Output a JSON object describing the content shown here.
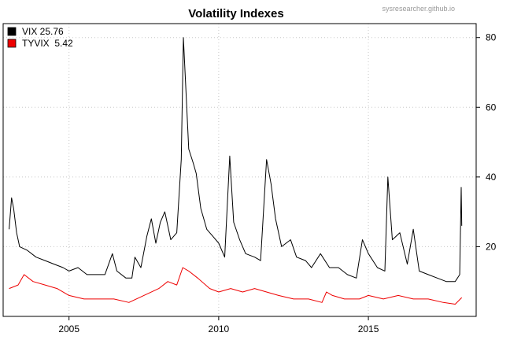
{
  "watermark": "sysresearcher.github.io",
  "chart_data": {
    "type": "line",
    "title": "Volatility Indexes",
    "xlabel": "",
    "ylabel": "",
    "x_ticks": [
      "2005",
      "2010",
      "2015"
    ],
    "y_ticks": [
      "20",
      "40",
      "60",
      "80"
    ],
    "xlim": [
      2002.8,
      2018.6
    ],
    "ylim": [
      0,
      84
    ],
    "y_axis_side": "right",
    "grid": true,
    "legend_position": "top-left",
    "legend": [
      {
        "label": "VIX 25.76",
        "color": "#000000"
      },
      {
        "label": "TYVIX  5.42",
        "color": "#ee0000"
      }
    ],
    "series": [
      {
        "name": "VIX",
        "color": "#000000",
        "points": [
          [
            2003.0,
            25
          ],
          [
            2003.08,
            34
          ],
          [
            2003.15,
            31
          ],
          [
            2003.25,
            24
          ],
          [
            2003.35,
            20
          ],
          [
            2003.6,
            19
          ],
          [
            2003.9,
            17
          ],
          [
            2004.2,
            16
          ],
          [
            2004.5,
            15
          ],
          [
            2004.8,
            14
          ],
          [
            2005.0,
            13
          ],
          [
            2005.3,
            14
          ],
          [
            2005.6,
            12
          ],
          [
            2005.9,
            12
          ],
          [
            2006.2,
            12
          ],
          [
            2006.45,
            18
          ],
          [
            2006.6,
            13
          ],
          [
            2006.9,
            11
          ],
          [
            2007.1,
            11
          ],
          [
            2007.2,
            17
          ],
          [
            2007.4,
            14
          ],
          [
            2007.6,
            23
          ],
          [
            2007.75,
            28
          ],
          [
            2007.9,
            21
          ],
          [
            2008.05,
            27
          ],
          [
            2008.2,
            30
          ],
          [
            2008.4,
            22
          ],
          [
            2008.6,
            24
          ],
          [
            2008.75,
            45
          ],
          [
            2008.82,
            80
          ],
          [
            2008.9,
            66
          ],
          [
            2009.0,
            48
          ],
          [
            2009.15,
            44
          ],
          [
            2009.25,
            41
          ],
          [
            2009.4,
            31
          ],
          [
            2009.6,
            25
          ],
          [
            2009.8,
            23
          ],
          [
            2010.0,
            21
          ],
          [
            2010.2,
            17
          ],
          [
            2010.37,
            46
          ],
          [
            2010.5,
            27
          ],
          [
            2010.7,
            22
          ],
          [
            2010.9,
            18
          ],
          [
            2011.2,
            17
          ],
          [
            2011.4,
            16
          ],
          [
            2011.6,
            45
          ],
          [
            2011.75,
            38
          ],
          [
            2011.9,
            28
          ],
          [
            2012.1,
            20
          ],
          [
            2012.4,
            22
          ],
          [
            2012.6,
            17
          ],
          [
            2012.9,
            16
          ],
          [
            2013.1,
            14
          ],
          [
            2013.4,
            18
          ],
          [
            2013.7,
            14
          ],
          [
            2014.0,
            14
          ],
          [
            2014.3,
            12
          ],
          [
            2014.6,
            11
          ],
          [
            2014.8,
            22
          ],
          [
            2015.0,
            18
          ],
          [
            2015.3,
            14
          ],
          [
            2015.55,
            13
          ],
          [
            2015.65,
            40
          ],
          [
            2015.8,
            22
          ],
          [
            2016.05,
            24
          ],
          [
            2016.3,
            15
          ],
          [
            2016.5,
            25
          ],
          [
            2016.7,
            13
          ],
          [
            2017.0,
            12
          ],
          [
            2017.3,
            11
          ],
          [
            2017.6,
            10
          ],
          [
            2017.9,
            10
          ],
          [
            2018.05,
            12
          ],
          [
            2018.1,
            37
          ],
          [
            2018.12,
            26
          ]
        ]
      },
      {
        "name": "TYVIX",
        "color": "#ee0000",
        "points": [
          [
            2003.0,
            8
          ],
          [
            2003.3,
            9
          ],
          [
            2003.5,
            12
          ],
          [
            2003.8,
            10
          ],
          [
            2004.2,
            9
          ],
          [
            2004.6,
            8
          ],
          [
            2005.0,
            6
          ],
          [
            2005.5,
            5
          ],
          [
            2006.0,
            5
          ],
          [
            2006.5,
            5
          ],
          [
            2007.0,
            4
          ],
          [
            2007.5,
            6
          ],
          [
            2008.0,
            8
          ],
          [
            2008.3,
            10
          ],
          [
            2008.6,
            9
          ],
          [
            2008.8,
            14
          ],
          [
            2009.0,
            13
          ],
          [
            2009.3,
            11
          ],
          [
            2009.7,
            8
          ],
          [
            2010.0,
            7
          ],
          [
            2010.4,
            8
          ],
          [
            2010.8,
            7
          ],
          [
            2011.2,
            8
          ],
          [
            2011.6,
            7
          ],
          [
            2012.0,
            6
          ],
          [
            2012.5,
            5
          ],
          [
            2013.0,
            5
          ],
          [
            2013.45,
            4
          ],
          [
            2013.6,
            7
          ],
          [
            2013.8,
            6
          ],
          [
            2014.2,
            5
          ],
          [
            2014.7,
            5
          ],
          [
            2015.0,
            6
          ],
          [
            2015.5,
            5
          ],
          [
            2016.0,
            6
          ],
          [
            2016.5,
            5
          ],
          [
            2017.0,
            5
          ],
          [
            2017.5,
            4
          ],
          [
            2017.9,
            3.5
          ],
          [
            2018.12,
            5.4
          ]
        ]
      }
    ]
  }
}
